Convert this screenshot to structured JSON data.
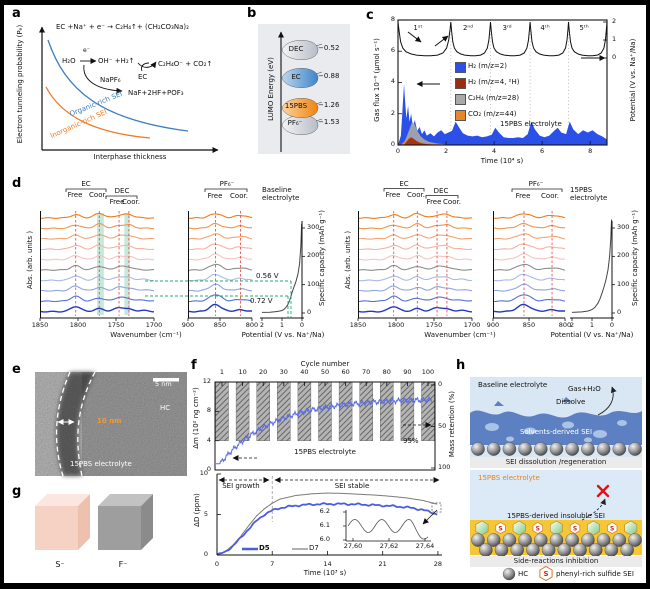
{
  "colors": {
    "blue_h2": "#2b50e8",
    "dark_red": "#9e2b0e",
    "gray_series": "#a9a9a9",
    "orange_co2": "#e8862a",
    "organic_blue": "#3a7fc2",
    "inorganic_orange": "#ec7d2a",
    "red_dash": "#e8433a",
    "green_dash": "#2aa876",
    "qcm_blue": "#5b6ee8",
    "d5_blue": "#4a5ce0",
    "d7_gray": "#7a7a7a",
    "pbs_orange": "#ee8412",
    "yellow_band": "#f5c636",
    "sei_blue": "#5d80c2",
    "box_bg": "#d9e6f4"
  },
  "panels": {
    "a": {
      "label": "a",
      "ylabel": "Electron tunneling probability (Pₑ)",
      "xlabel": "Interphase thickness",
      "organic": "Organic-rich SEI",
      "inorganic": "Inorganic-rich SEI",
      "eq1": "EC +Na⁺ + e⁻ → C₂H₄↑+ (CH₂CO₃Na)₂",
      "eq2_pre": "H₂O",
      "eq2_e": "e⁻",
      "eq2_mid": "OH⁻ +H₂↑",
      "eq2_rhs": "C₂H₄O⁻ + CO₂↑",
      "eq2_ec": "EC",
      "napf6": "NaPF₆",
      "naf": "NaF+2HF+POF₃"
    },
    "b": {
      "label": "b",
      "axis": "LUMO Energy (eV)",
      "items": [
        {
          "name": "DEC",
          "value": "−0.52",
          "kind": "gray"
        },
        {
          "name": "EC",
          "value": "−0.88",
          "kind": "blue"
        },
        {
          "name": "15PBS",
          "value": "−1.26",
          "kind": "orange"
        },
        {
          "name": "PF₆⁻",
          "value": "−1.53",
          "kind": "gray"
        }
      ]
    },
    "c": {
      "label": "c",
      "ylabel": "Gas flux 10⁻⁶ (μmol s⁻¹)",
      "y2label": "Potential (V vs. Na⁺/Na)",
      "xlabel": "Time (10⁴ s)",
      "note": "15PBS electrolyte",
      "cycles": [
        "1ˢᵗ",
        "2ⁿᵈ",
        "3ʳᵈ",
        "4ᵗʰ",
        "5ᵗʰ"
      ],
      "yticks": [
        8,
        6,
        4,
        2,
        0
      ],
      "y2ticks": [
        2,
        1,
        0
      ],
      "xticks": [
        0,
        2,
        4,
        6,
        8
      ],
      "legend": [
        {
          "label": "H₂ (m/z=2)",
          "color": "#2b50e8"
        },
        {
          "label": "H₂ (m/z=4, ²H)",
          "color": "#9e2b0e"
        },
        {
          "label": "C₂H₄ (m/z=28)",
          "color": "#a9a9a9"
        },
        {
          "label": "CO₂ (m/z=44)",
          "color": "#e8862a"
        }
      ]
    },
    "d": {
      "label": "d",
      "ylabel": "Abs. (arb. units )",
      "xlabel_ftir": "Wavenumber (cm⁻¹)",
      "xlabel_cap": "Potential (V vs. Na⁺/Na)",
      "ylabel_cap": "Specific capacity (mAh g⁻¹)",
      "ec": "EC",
      "dec": "DEC",
      "pf6": "PF₆⁻",
      "free": "Free",
      "coor": "Coor.",
      "baseline_title": "Baseline electrolyte",
      "pbs_title": "15PBS electrolyte",
      "v1": "0.56 V",
      "v2": "0.72 V",
      "ftir_xticks": [
        1850,
        1800,
        1750,
        1700
      ],
      "pf6_xticks": [
        900,
        850,
        800
      ],
      "cap_xticks": [
        2,
        1,
        0
      ],
      "cap_yticks": [
        0,
        100,
        200,
        300
      ]
    },
    "e": {
      "label": "e",
      "scalebar": "5 nm",
      "hc": "HC",
      "thickness": "10 nm",
      "note": "15PBS electrolyte"
    },
    "f": {
      "label": "f",
      "cycle_axis": "Cycle number",
      "cycle_ticks": [
        1,
        10,
        20,
        30,
        40,
        50,
        60,
        70,
        80,
        90,
        100
      ],
      "ylabel_top": "Δm (10² ng cm⁻²)",
      "yticks_top": [
        0,
        4,
        8,
        12
      ],
      "y2label_top": "Mass retention (%)",
      "y2ticks_top": [
        0,
        50,
        100
      ],
      "retention": "95%",
      "note": "15PBS electrolyte",
      "region1": "SEI growth",
      "region2": "SEI stable",
      "ylabel_bot": "ΔD (ppm)",
      "yticks_bot": [
        10,
        5,
        0
      ],
      "xlabel_bot": "Time (10³ s)",
      "xticks_bot": [
        0,
        7,
        14,
        21,
        28
      ],
      "legend": [
        {
          "label": "D5",
          "color": "#4a5ce0"
        },
        {
          "label": "D7",
          "color": "#7a7a7a"
        }
      ],
      "inset_yticks": [
        "6.2",
        "6.1",
        "6.0"
      ],
      "inset_xticks": [
        "27,60",
        "27,62",
        "27,64"
      ]
    },
    "g": {
      "label": "g",
      "left": "S⁻",
      "right": "F⁻"
    },
    "h": {
      "label": "h",
      "top": {
        "title": "Baseline electrolyte",
        "gas": "Gas+H₂O",
        "dissolve": "Dissolve",
        "sei": "Solvents-derived SEI",
        "caption": "SEI dissolution /regeneration"
      },
      "bottom": {
        "title": "15PBS electrolyte",
        "sei": "15PBS-derived insoluble SEI",
        "caption": "Side-reactions inhibition",
        "s": "S"
      },
      "legend_hc": "HC",
      "legend_sulfide": "phenyl-rich sulfide SEI"
    }
  },
  "chart_data": [
    {
      "id": "panel_c_gas_flux",
      "type": "area",
      "xlabel": "Time (10⁴ s)",
      "ylabel": "Gas flux 10⁻⁶ (μmol s⁻¹)",
      "y2label": "Potential (V vs. Na⁺/Na)",
      "xlim": [
        0,
        8.7
      ],
      "ylim": [
        0,
        8
      ],
      "y2lim": [
        0,
        2
      ],
      "cycle_bounds": [
        0,
        2.2,
        3.85,
        5.5,
        7.1,
        8.7
      ],
      "cycle_profile": [
        [
          0,
          2
        ],
        [
          0.02,
          1.5
        ],
        [
          0.05,
          0.9
        ],
        [
          0.09,
          0.55
        ],
        [
          0.15,
          0.35
        ],
        [
          0.25,
          0.22
        ],
        [
          0.35,
          0.16
        ],
        [
          0.5,
          0.12
        ],
        [
          0.62,
          0.12
        ],
        [
          0.75,
          0.16
        ],
        [
          0.85,
          0.28
        ],
        [
          0.92,
          0.55
        ],
        [
          0.96,
          1.0
        ],
        [
          0.985,
          1.6
        ],
        [
          1,
          2
        ]
      ],
      "series": [
        {
          "name": "H₂ (m/z=2)",
          "color": "#2b50e8",
          "points": [
            [
              0,
              0
            ],
            [
              0.12,
              0.6
            ],
            [
              0.2,
              2.6
            ],
            [
              0.25,
              3.9
            ],
            [
              0.3,
              2.7
            ],
            [
              0.35,
              1.7
            ],
            [
              0.42,
              2.5
            ],
            [
              0.48,
              1.5
            ],
            [
              0.55,
              2.0
            ],
            [
              0.62,
              1.1
            ],
            [
              0.7,
              1.6
            ],
            [
              0.8,
              0.9
            ],
            [
              0.9,
              1.15
            ],
            [
              1.0,
              0.7
            ],
            [
              1.1,
              0.95
            ],
            [
              1.2,
              0.6
            ],
            [
              1.35,
              0.75
            ],
            [
              1.5,
              0.55
            ],
            [
              1.65,
              0.8
            ],
            [
              1.8,
              0.95
            ],
            [
              1.95,
              0.7
            ],
            [
              2.1,
              0.8
            ],
            [
              2.25,
              0.9
            ],
            [
              2.4,
              1.5
            ],
            [
              2.55,
              1.1
            ],
            [
              2.7,
              0.75
            ],
            [
              2.9,
              0.6
            ],
            [
              3.1,
              0.55
            ],
            [
              3.3,
              0.6
            ],
            [
              3.5,
              0.5
            ],
            [
              3.7,
              0.55
            ],
            [
              3.9,
              0.65
            ],
            [
              4.05,
              1.1
            ],
            [
              4.2,
              0.8
            ],
            [
              4.4,
              0.5
            ],
            [
              4.6,
              0.45
            ],
            [
              4.8,
              0.45
            ],
            [
              5.0,
              0.5
            ],
            [
              5.2,
              0.45
            ],
            [
              5.4,
              0.7
            ],
            [
              5.55,
              1.5
            ],
            [
              5.7,
              1.0
            ],
            [
              5.9,
              0.6
            ],
            [
              6.1,
              0.5
            ],
            [
              6.3,
              0.6
            ],
            [
              6.5,
              0.9
            ],
            [
              6.65,
              1.1
            ],
            [
              6.8,
              0.8
            ],
            [
              7.0,
              0.7
            ],
            [
              7.15,
              1.5
            ],
            [
              7.3,
              1.0
            ],
            [
              7.5,
              0.7
            ],
            [
              7.7,
              0.95
            ],
            [
              7.9,
              0.8
            ],
            [
              8.1,
              0.95
            ],
            [
              8.3,
              0.7
            ],
            [
              8.5,
              0.55
            ],
            [
              8.7,
              0.35
            ]
          ]
        },
        {
          "name": "C₂H₄ (m/z=28)",
          "color": "#a9a9a9",
          "points": [
            [
              0.2,
              0
            ],
            [
              0.35,
              0.5
            ],
            [
              0.5,
              1.1
            ],
            [
              0.6,
              1.5
            ],
            [
              0.7,
              1.3
            ],
            [
              0.8,
              0.9
            ],
            [
              0.95,
              0.55
            ],
            [
              1.1,
              0.35
            ],
            [
              1.3,
              0.2
            ],
            [
              1.6,
              0.1
            ],
            [
              2.0,
              0.04
            ],
            [
              2.4,
              0
            ]
          ]
        },
        {
          "name": "CO₂ (m/z=44)",
          "color": "#e8862a",
          "points": [
            [
              0.1,
              0
            ],
            [
              0.3,
              0.28
            ],
            [
              0.5,
              0.33
            ],
            [
              0.7,
              0.28
            ],
            [
              0.9,
              0.18
            ],
            [
              1.2,
              0.1
            ],
            [
              1.6,
              0.05
            ],
            [
              2.2,
              0
            ]
          ]
        },
        {
          "name": "H₂ (m/z=4, ²H)",
          "color": "#9e2b0e",
          "points": [
            [
              0.25,
              0
            ],
            [
              0.35,
              0.2
            ],
            [
              0.45,
              0.4
            ],
            [
              0.55,
              0.5
            ],
            [
              0.65,
              0.4
            ],
            [
              0.78,
              0.25
            ],
            [
              0.95,
              0.12
            ],
            [
              1.2,
              0.06
            ],
            [
              1.6,
              0.02
            ],
            [
              2.0,
              0
            ]
          ]
        }
      ]
    },
    {
      "id": "capacity_baseline",
      "type": "line",
      "title": "Baseline electrolyte",
      "xlabel": "Potential (V vs. Na⁺/Na)",
      "ylabel": "Specific capacity (mAh g⁻¹)",
      "xlim": [
        2,
        0
      ],
      "ylim": [
        0,
        340
      ],
      "annotations": [
        "0.56 V",
        "0.72 V"
      ],
      "points": [
        [
          2,
          2
        ],
        [
          1.6,
          3
        ],
        [
          1.3,
          5
        ],
        [
          1.1,
          7
        ],
        [
          1.0,
          9
        ],
        [
          0.9,
          13
        ],
        [
          0.8,
          20
        ],
        [
          0.72,
          28
        ],
        [
          0.65,
          38
        ],
        [
          0.6,
          48
        ],
        [
          0.56,
          58
        ],
        [
          0.5,
          72
        ],
        [
          0.4,
          92
        ],
        [
          0.3,
          112
        ],
        [
          0.2,
          138
        ],
        [
          0.12,
          175
        ],
        [
          0.06,
          235
        ],
        [
          0.03,
          290
        ],
        [
          0.02,
          315
        ]
      ]
    },
    {
      "id": "capacity_15pbs",
      "type": "line",
      "title": "15PBS electrolyte",
      "xlabel": "Potential (V vs. Na⁺/Na)",
      "ylabel": "Specific capacity (mAh g⁻¹)",
      "xlim": [
        2,
        0
      ],
      "ylim": [
        0,
        340
      ],
      "points": [
        [
          2,
          2
        ],
        [
          1.5,
          4
        ],
        [
          1.2,
          7
        ],
        [
          1.0,
          12
        ],
        [
          0.85,
          20
        ],
        [
          0.7,
          35
        ],
        [
          0.6,
          50
        ],
        [
          0.5,
          70
        ],
        [
          0.4,
          92
        ],
        [
          0.3,
          118
        ],
        [
          0.2,
          152
        ],
        [
          0.12,
          200
        ],
        [
          0.06,
          262
        ],
        [
          0.03,
          318
        ],
        [
          0.02,
          330
        ]
      ]
    },
    {
      "id": "ftir",
      "type": "line",
      "xlabel": "Wavenumber (cm⁻¹)",
      "ylabel": "Abs. (arb. units )",
      "n_spectra": 10,
      "colors": [
        "#ee7d1a",
        "#f2944b",
        "#f4a371",
        "#f6b29b",
        "#f8c3bd",
        "#8d8d8d",
        "#a9b9e8",
        "#8fa4e2",
        "#5570d8",
        "#2337c6"
      ],
      "ec_region": {
        "xlim": [
          1850,
          1700
        ],
        "sigma": 6.5,
        "peaks": [
          {
            "mu": 1803,
            "A": 4.3,
            "type": "free"
          },
          {
            "mu": 1772,
            "A": 3.9,
            "type": "coor"
          },
          {
            "mu": 1746,
            "A": 3.2,
            "type": "free"
          },
          {
            "mu": 1733,
            "A": 2.8,
            "type": "coor"
          },
          {
            "mu": 1714,
            "A": 1.1,
            "type": "minor"
          }
        ]
      },
      "pf6_region": {
        "xlim": [
          900,
          800
        ],
        "sigma": 9,
        "peaks": [
          {
            "mu": 857,
            "A": 5.8,
            "type": "free"
          },
          {
            "mu": 818,
            "A": 2.2,
            "type": "coor"
          }
        ]
      }
    },
    {
      "id": "qcm_mass",
      "type": "line",
      "xlabel": "Cycle number",
      "ylabel": "Δm (10² ng cm⁻²)",
      "ylim": [
        0,
        12
      ],
      "y2label": "Mass retention (%)",
      "retention_final": "95%",
      "model": {
        "start": 0.85,
        "saturation": 9.75,
        "tau": 26,
        "ripple": 0.4
      }
    },
    {
      "id": "qcm_dissipation",
      "type": "line",
      "xlabel": "Time (10³ s)",
      "ylabel": "ΔD (ppm)",
      "xlim": [
        0,
        28
      ],
      "ylim": [
        0,
        10
      ],
      "series": [
        {
          "name": "D5",
          "color": "#4a5ce0",
          "points": [
            [
              0,
              0
            ],
            [
              1,
              0.35
            ],
            [
              2,
              1.1
            ],
            [
              3,
              2.1
            ],
            [
              4,
              3.2
            ],
            [
              5,
              4.2
            ],
            [
              6,
              5.0
            ],
            [
              7,
              5.5
            ],
            [
              8,
              5.8
            ],
            [
              10,
              6.1
            ],
            [
              12,
              6.25
            ],
            [
              14,
              6.3
            ],
            [
              16,
              6.3
            ],
            [
              18,
              6.25
            ],
            [
              20,
              6.15
            ],
            [
              22,
              6.05
            ],
            [
              24,
              5.9
            ],
            [
              26,
              5.6
            ],
            [
              27,
              5.3
            ],
            [
              28,
              5.0
            ]
          ]
        },
        {
          "name": "D7",
          "color": "#7a7a7a",
          "points": [
            [
              0,
              0
            ],
            [
              1,
              0.4
            ],
            [
              2,
              1.2
            ],
            [
              3,
              2.3
            ],
            [
              4,
              3.6
            ],
            [
              5,
              4.8
            ],
            [
              6,
              5.7
            ],
            [
              7,
              6.4
            ],
            [
              8,
              6.9
            ],
            [
              10,
              7.35
            ],
            [
              12,
              7.55
            ],
            [
              14,
              7.65
            ],
            [
              16,
              7.6
            ],
            [
              18,
              7.5
            ],
            [
              20,
              7.4
            ],
            [
              22,
              7.25
            ],
            [
              24,
              7.05
            ],
            [
              26,
              6.75
            ],
            [
              27,
              6.5
            ],
            [
              28,
              6.25
            ]
          ]
        }
      ],
      "inset": {
        "yticks": [
          "6.2",
          "6.1",
          "6.0"
        ],
        "xticks": [
          "27,60",
          "27,62",
          "27,64"
        ]
      }
    }
  ]
}
